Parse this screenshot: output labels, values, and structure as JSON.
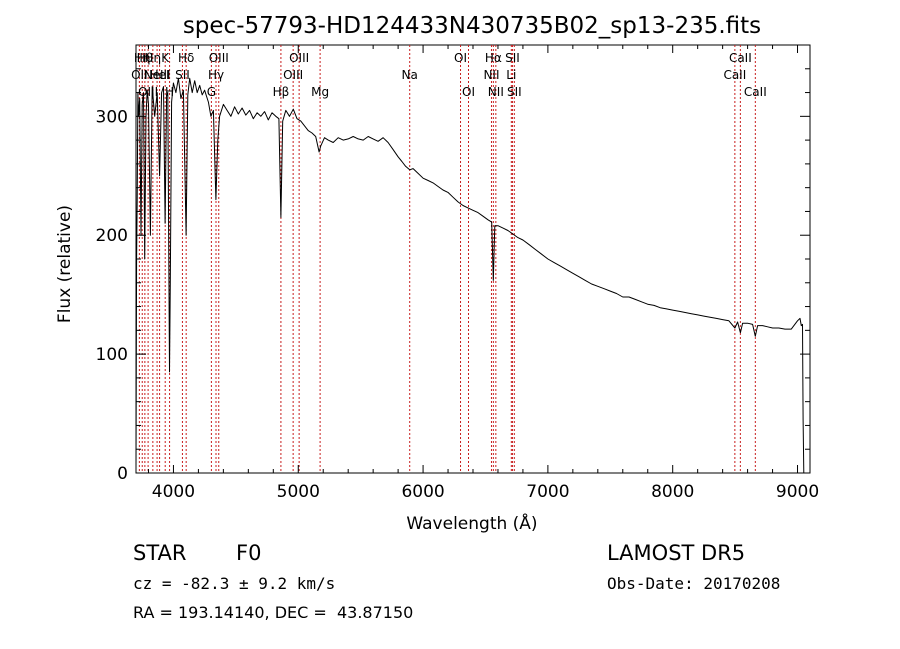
{
  "chart_data": {
    "type": "line",
    "title": "spec-57793-HD124433N430735B02_sp13-235.fits",
    "xlabel": "Wavelength (Å)",
    "ylabel": "Flux (relative)",
    "xlim": [
      3700,
      9100
    ],
    "ylim": [
      0,
      360
    ],
    "xticks": [
      4000,
      5000,
      6000,
      7000,
      8000,
      9000
    ],
    "yticks": [
      0,
      100,
      200,
      300
    ],
    "grid": false,
    "line_color": "#000000",
    "marker_color": "#c81e1e",
    "series": [
      {
        "values_xy": [
          [
            3700,
            5
          ],
          [
            3705,
            180
          ],
          [
            3710,
            230
          ],
          [
            3715,
            320
          ],
          [
            3720,
            300
          ],
          [
            3730,
            315
          ],
          [
            3740,
            200
          ],
          [
            3750,
            310
          ],
          [
            3760,
            320
          ],
          [
            3770,
            180
          ],
          [
            3780,
            300
          ],
          [
            3790,
            322
          ],
          [
            3800,
            310
          ],
          [
            3815,
            200
          ],
          [
            3830,
            325
          ],
          [
            3850,
            300
          ],
          [
            3870,
            320
          ],
          [
            3889,
            250
          ],
          [
            3905,
            320
          ],
          [
            3920,
            325
          ],
          [
            3933,
            210
          ],
          [
            3945,
            318
          ],
          [
            3955,
            320
          ],
          [
            3968,
            85
          ],
          [
            3975,
            160
          ],
          [
            3985,
            312
          ],
          [
            4000,
            328
          ],
          [
            4020,
            320
          ],
          [
            4040,
            332
          ],
          [
            4060,
            315
          ],
          [
            4080,
            322
          ],
          [
            4101,
            200
          ],
          [
            4115,
            318
          ],
          [
            4130,
            332
          ],
          [
            4150,
            320
          ],
          [
            4170,
            330
          ],
          [
            4190,
            320
          ],
          [
            4210,
            326
          ],
          [
            4230,
            318
          ],
          [
            4250,
            322
          ],
          [
            4280,
            312
          ],
          [
            4300,
            300
          ],
          [
            4320,
            305
          ],
          [
            4340,
            230
          ],
          [
            4355,
            280
          ],
          [
            4370,
            300
          ],
          [
            4400,
            310
          ],
          [
            4430,
            305
          ],
          [
            4460,
            300
          ],
          [
            4490,
            308
          ],
          [
            4520,
            302
          ],
          [
            4550,
            307
          ],
          [
            4580,
            301
          ],
          [
            4610,
            305
          ],
          [
            4640,
            298
          ],
          [
            4670,
            303
          ],
          [
            4700,
            300
          ],
          [
            4730,
            304
          ],
          [
            4760,
            297
          ],
          [
            4790,
            303
          ],
          [
            4820,
            300
          ],
          [
            4845,
            298
          ],
          [
            4861,
            215
          ],
          [
            4875,
            296
          ],
          [
            4900,
            305
          ],
          [
            4930,
            300
          ],
          [
            4960,
            306
          ],
          [
            4990,
            298
          ],
          [
            5020,
            296
          ],
          [
            5050,
            292
          ],
          [
            5080,
            288
          ],
          [
            5110,
            286
          ],
          [
            5140,
            283
          ],
          [
            5167,
            270
          ],
          [
            5180,
            275
          ],
          [
            5210,
            282
          ],
          [
            5240,
            280
          ],
          [
            5280,
            278
          ],
          [
            5320,
            282
          ],
          [
            5360,
            280
          ],
          [
            5400,
            281
          ],
          [
            5440,
            283
          ],
          [
            5480,
            281
          ],
          [
            5520,
            280
          ],
          [
            5560,
            283
          ],
          [
            5600,
            281
          ],
          [
            5640,
            279
          ],
          [
            5680,
            282
          ],
          [
            5720,
            278
          ],
          [
            5760,
            272
          ],
          [
            5800,
            266
          ],
          [
            5830,
            262
          ],
          [
            5860,
            258
          ],
          [
            5893,
            255
          ],
          [
            5920,
            256
          ],
          [
            5960,
            252
          ],
          [
            6000,
            248
          ],
          [
            6040,
            246
          ],
          [
            6080,
            244
          ],
          [
            6120,
            241
          ],
          [
            6160,
            238
          ],
          [
            6200,
            236
          ],
          [
            6240,
            232
          ],
          [
            6280,
            228
          ],
          [
            6320,
            225
          ],
          [
            6360,
            223
          ],
          [
            6400,
            221
          ],
          [
            6440,
            219
          ],
          [
            6480,
            216
          ],
          [
            6520,
            213
          ],
          [
            6550,
            211
          ],
          [
            6563,
            162
          ],
          [
            6575,
            208
          ],
          [
            6600,
            208
          ],
          [
            6640,
            206
          ],
          [
            6680,
            204
          ],
          [
            6720,
            201
          ],
          [
            6760,
            198
          ],
          [
            6800,
            196
          ],
          [
            6850,
            192
          ],
          [
            6900,
            188
          ],
          [
            6950,
            184
          ],
          [
            7000,
            180
          ],
          [
            7050,
            177
          ],
          [
            7100,
            174
          ],
          [
            7150,
            171
          ],
          [
            7200,
            168
          ],
          [
            7250,
            165
          ],
          [
            7300,
            162
          ],
          [
            7350,
            159
          ],
          [
            7400,
            157
          ],
          [
            7450,
            155
          ],
          [
            7500,
            153
          ],
          [
            7550,
            151
          ],
          [
            7600,
            148
          ],
          [
            7650,
            148
          ],
          [
            7700,
            146
          ],
          [
            7750,
            144
          ],
          [
            7800,
            142
          ],
          [
            7850,
            141
          ],
          [
            7900,
            139
          ],
          [
            7950,
            138
          ],
          [
            8000,
            137
          ],
          [
            8050,
            136
          ],
          [
            8100,
            135
          ],
          [
            8150,
            134
          ],
          [
            8200,
            133
          ],
          [
            8250,
            132
          ],
          [
            8300,
            131
          ],
          [
            8350,
            130
          ],
          [
            8400,
            129
          ],
          [
            8450,
            128
          ],
          [
            8498,
            122
          ],
          [
            8520,
            127
          ],
          [
            8542,
            118
          ],
          [
            8560,
            126
          ],
          [
            8600,
            126
          ],
          [
            8640,
            125
          ],
          [
            8662,
            115
          ],
          [
            8680,
            124
          ],
          [
            8720,
            124
          ],
          [
            8760,
            123
          ],
          [
            8800,
            122
          ],
          [
            8850,
            122
          ],
          [
            8900,
            121
          ],
          [
            8950,
            121
          ],
          [
            9000,
            128
          ],
          [
            9020,
            130
          ],
          [
            9030,
            124
          ],
          [
            9040,
            125
          ],
          [
            9045,
            45
          ],
          [
            9050,
            0
          ]
        ]
      }
    ],
    "lines": [
      {
        "x": 3727,
        "labels": [
          "OII"
        ],
        "tier": 1
      },
      {
        "x": 3750,
        "labels": [
          "Hη"
        ],
        "tier": 0
      },
      {
        "x": 3771,
        "labels": [
          "Hθ"
        ],
        "tier": 0
      },
      {
        "x": 3797,
        "labels": [
          "OIII"
        ],
        "tier": 2
      },
      {
        "x": 3835,
        "labels": [
          "Hη"
        ],
        "tier": 0
      },
      {
        "x": 3869,
        "labels": [
          "NeIII"
        ],
        "tier": 1
      },
      {
        "x": 3889,
        "labels": [
          "HeI"
        ],
        "tier": 1
      },
      {
        "x": 3934,
        "labels": [
          "K"
        ],
        "tier": 0
      },
      {
        "x": 3969,
        "labels": [
          "H"
        ],
        "tier": 2
      },
      {
        "x": 4072,
        "labels": [
          "SII"
        ],
        "tier": 1
      },
      {
        "x": 4102,
        "labels": [
          "Hδ"
        ],
        "tier": 0
      },
      {
        "x": 4304,
        "labels": [
          "G"
        ],
        "tier": 2
      },
      {
        "x": 4341,
        "labels": [
          "Hγ"
        ],
        "tier": 1
      },
      {
        "x": 4363,
        "labels": [
          "OIII"
        ],
        "tier": 0
      },
      {
        "x": 4861,
        "labels": [
          "Hβ"
        ],
        "tier": 2
      },
      {
        "x": 4959,
        "labels": [
          "OIII"
        ],
        "tier": 1
      },
      {
        "x": 5007,
        "labels": [
          "OIII"
        ],
        "tier": 0
      },
      {
        "x": 5175,
        "labels": [
          "Mg"
        ],
        "tier": 2
      },
      {
        "x": 5893,
        "labels": [
          "Na"
        ],
        "tier": 1
      },
      {
        "x": 6300,
        "labels": [
          "OI"
        ],
        "tier": 0
      },
      {
        "x": 6364,
        "labels": [
          "OI"
        ],
        "tier": 2
      },
      {
        "x": 6548,
        "labels": [
          "NII"
        ],
        "tier": 1
      },
      {
        "x": 6563,
        "labels": [
          "Hα"
        ],
        "tier": 0
      },
      {
        "x": 6583,
        "labels": [
          "NII"
        ],
        "tier": 2
      },
      {
        "x": 6707,
        "labels": [
          "Li"
        ],
        "tier": 1
      },
      {
        "x": 6716,
        "labels": [
          "SII"
        ],
        "tier": 0
      },
      {
        "x": 6731,
        "labels": [
          "SII"
        ],
        "tier": 2
      },
      {
        "x": 8498,
        "labels": [
          "CaII"
        ],
        "tier": 1
      },
      {
        "x": 8542,
        "labels": [
          "CaII"
        ],
        "tier": 0
      },
      {
        "x": 8662,
        "labels": [
          "CaII"
        ],
        "tier": 2
      }
    ]
  },
  "info": {
    "class_label": "STAR",
    "subclass_label": "F0",
    "survey": "LAMOST DR5",
    "cz": "cz = -82.3 ± 9.2 km/s",
    "obs_date": "Obs-Date: 20170208",
    "coords": "RA = 193.14140, DEC =  43.87150"
  }
}
